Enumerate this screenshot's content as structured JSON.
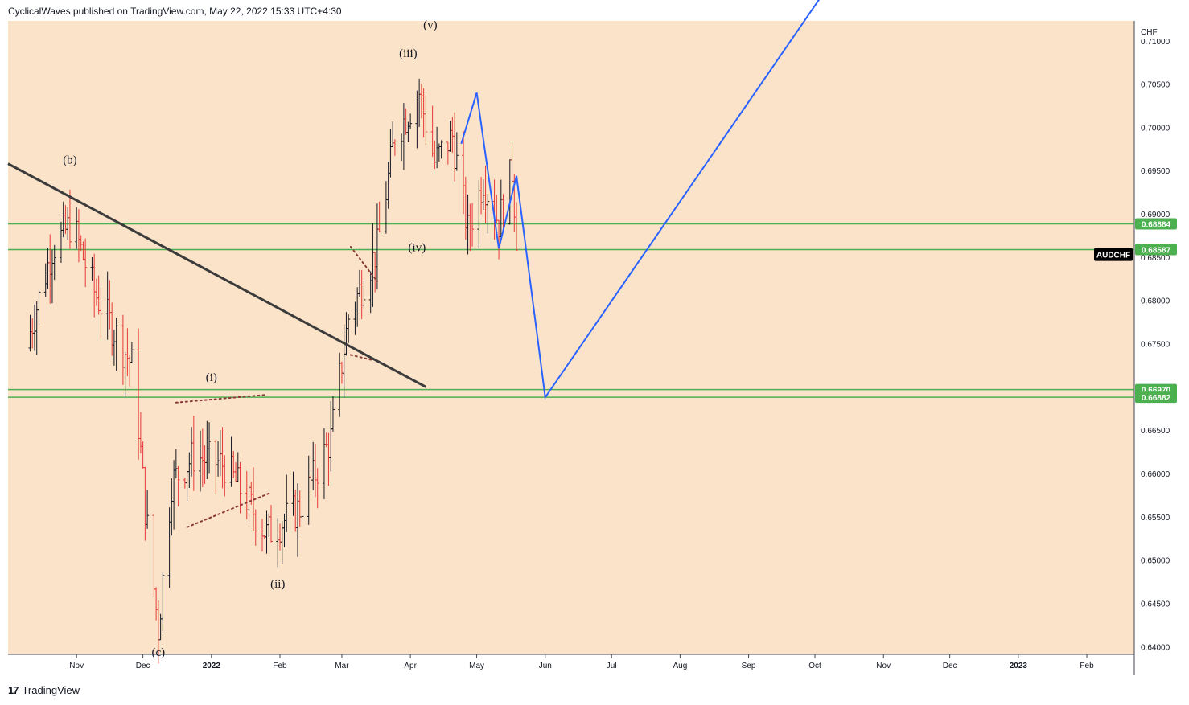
{
  "header": {
    "text": "CyclicalWaves published on TradingView.com, May 22, 2022 15:33 UTC+4:30"
  },
  "footer": {
    "logo": "17",
    "brand": "TradingView"
  },
  "colors": {
    "background": "#fbe3c9",
    "up_bar": "#131722",
    "down_bar": "#e53935",
    "horizontal_level": "#4caf50",
    "forecast": "#2962ff",
    "trendline": "#3b3b3b",
    "level_badge": "#4caf50",
    "symbol_badge": "#000000"
  },
  "chart_data": {
    "type": "ohlc",
    "symbol": "AUDCHF",
    "currency_label": "CHF",
    "x_tick_labels": [
      "Nov",
      "Dec",
      "2022",
      "Feb",
      "Mar",
      "Apr",
      "May",
      "Jun",
      "Jul",
      "Aug",
      "Sep",
      "Oct",
      "Nov",
      "Dec",
      "2023",
      "Feb"
    ],
    "y_ticks": [
      "0.71000",
      "0.70500",
      "0.70000",
      "0.69500",
      "0.69000",
      "0.68500",
      "0.68000",
      "0.67500",
      "0.66500",
      "0.66000",
      "0.65500",
      "0.65000",
      "0.64500",
      "0.64000"
    ],
    "ylim": [
      0.6391,
      0.7123
    ],
    "price_anchors": [
      [
        "2021-10-09",
        0.6745
      ],
      [
        "2021-10-21",
        0.686
      ],
      [
        "2021-10-30",
        0.689
      ],
      [
        "2021-11-09",
        0.681
      ],
      [
        "2021-11-19",
        0.676
      ],
      [
        "2021-11-27",
        0.672
      ],
      [
        "2021-12-02",
        0.656
      ],
      [
        "2021-12-08",
        0.642
      ],
      [
        "2021-12-14",
        0.659
      ],
      [
        "2021-12-24",
        0.662
      ],
      [
        "2022-01-07",
        0.661
      ],
      [
        "2022-01-17",
        0.657
      ],
      [
        "2022-01-26",
        0.653
      ],
      [
        "2022-02-10",
        0.656
      ],
      [
        "2022-02-24",
        0.664
      ],
      [
        "2022-03-04",
        0.678
      ],
      [
        "2022-03-17",
        0.686
      ],
      [
        "2022-03-25",
        0.699
      ],
      [
        "2022-04-05",
        0.704
      ],
      [
        "2022-04-12",
        0.696
      ],
      [
        "2022-04-20",
        0.699
      ],
      [
        "2022-04-27",
        0.688
      ],
      [
        "2022-05-04",
        0.694
      ],
      [
        "2022-05-11",
        0.689
      ],
      [
        "2022-05-17",
        0.695
      ],
      [
        "2022-05-20",
        0.684
      ]
    ],
    "levels": [
      {
        "value": 0.68884,
        "label": "0.68884"
      },
      {
        "value": 0.68587,
        "label": "0.68587"
      },
      {
        "value": 0.6697,
        "label": "0.66970"
      },
      {
        "value": 0.66882,
        "label": "0.66882"
      }
    ],
    "last_price_label": "AUDCHF",
    "trendline": [
      [
        "2021-10-01",
        0.6958
      ],
      [
        "2022-04-08",
        0.67
      ]
    ],
    "forecast_path": [
      [
        "2022-04-24",
        0.6981
      ],
      [
        "2022-05-01",
        0.704
      ],
      [
        "2022-05-11",
        0.686
      ],
      [
        "2022-05-19",
        0.6944
      ],
      [
        "2022-06-01",
        0.6688
      ],
      [
        "2022-10-07",
        0.7163
      ]
    ],
    "dotted_lines": [
      [
        [
          "2021-12-16",
          0.6682
        ],
        [
          "2022-01-26",
          0.6691
        ]
      ],
      [
        [
          "2021-12-21",
          0.6538
        ],
        [
          "2022-01-28",
          0.6578
        ]
      ],
      [
        [
          "2022-03-05",
          0.6862
        ],
        [
          "2022-03-17",
          0.6822
        ]
      ],
      [
        [
          "2022-03-05",
          0.6737
        ],
        [
          "2022-03-15",
          0.6731
        ]
      ]
    ],
    "wave_labels": [
      {
        "text": "(b)",
        "date": "2021-10-29",
        "value": 0.6958
      },
      {
        "text": "(c)",
        "date": "2021-12-08",
        "value": 0.6389
      },
      {
        "text": "(i)",
        "date": "2022-01-01",
        "value": 0.6707
      },
      {
        "text": "(ii)",
        "date": "2022-01-31",
        "value": 0.6468
      },
      {
        "text": "(iii)",
        "date": "2022-03-31",
        "value": 0.7081
      },
      {
        "text": "(iv)",
        "date": "2022-04-04",
        "value": 0.6857
      },
      {
        "text": "(v)",
        "date": "2022-04-10",
        "value": 0.7114
      }
    ]
  }
}
